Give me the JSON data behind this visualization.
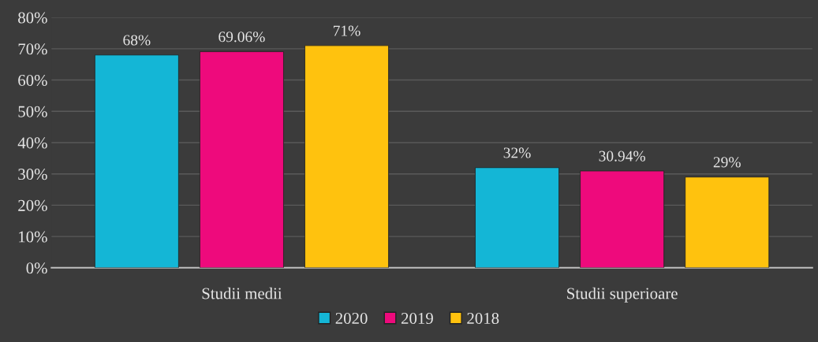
{
  "chart_data": {
    "type": "bar",
    "categories": [
      "Studii medii",
      "Studii superioare"
    ],
    "series": [
      {
        "name": "2020",
        "color": "#14b6d6",
        "values": [
          68,
          32
        ],
        "value_labels": [
          "68%",
          "32%"
        ]
      },
      {
        "name": "2019",
        "color": "#ee0a7c",
        "values": [
          69.06,
          30.94
        ],
        "value_labels": [
          "69.06%",
          "30.94%"
        ]
      },
      {
        "name": "2018",
        "color": "#ffc20e",
        "values": [
          71,
          29
        ],
        "value_labels": [
          "71%",
          "29%"
        ]
      }
    ],
    "ylim": [
      0,
      80
    ],
    "yticks": [
      {
        "value": 0,
        "label": "0%"
      },
      {
        "value": 10,
        "label": "10%"
      },
      {
        "value": 20,
        "label": "20%"
      },
      {
        "value": 30,
        "label": "30%"
      },
      {
        "value": 40,
        "label": "40%"
      },
      {
        "value": 50,
        "label": "50%"
      },
      {
        "value": 60,
        "label": "60%"
      },
      {
        "value": 70,
        "label": "70%"
      },
      {
        "value": 80,
        "label": "80%"
      }
    ],
    "grid": "y",
    "legend": "bottom"
  }
}
